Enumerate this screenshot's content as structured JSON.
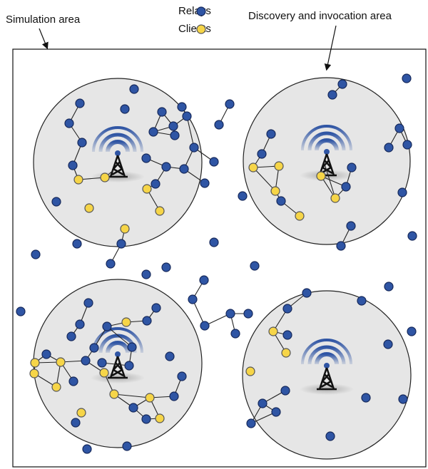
{
  "labels": {
    "simulation_area": "Simulation area",
    "discovery_area": "Discovery and invocation area"
  },
  "legend": {
    "relays": "Relays",
    "clients": "Clients"
  }
}
